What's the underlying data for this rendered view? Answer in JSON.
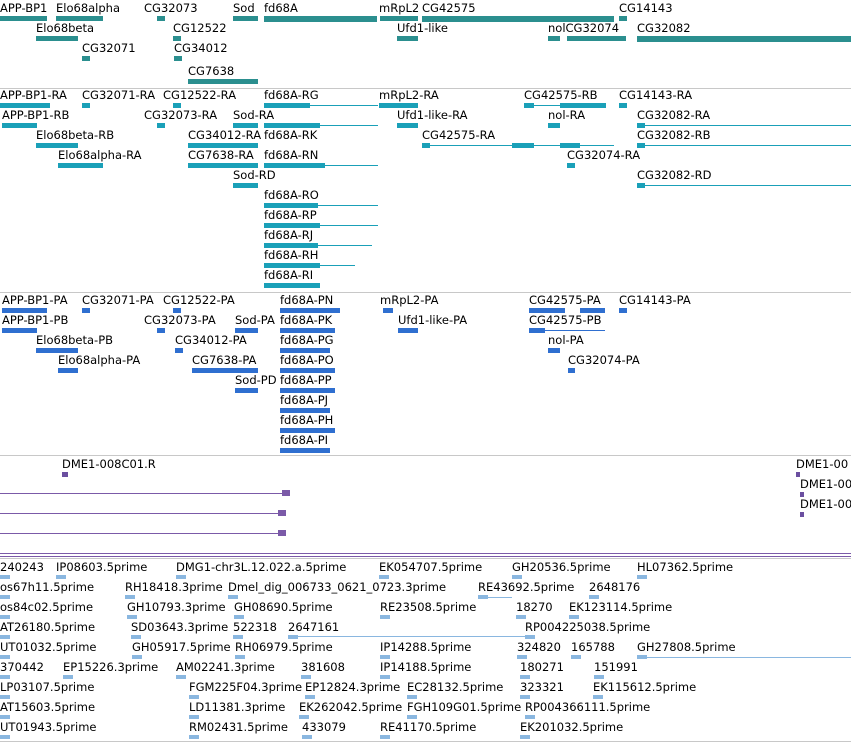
{
  "colors": {
    "gene": "#2b8f8f",
    "transcript": "#1aa0b8",
    "protein": "#2f6fd0",
    "clone": "#6b4fa0",
    "est": "#8ab7e0",
    "separator": "#c8c8c8",
    "purple_line": "#7b5aa8"
  },
  "tracks": {
    "genes": {
      "labels": [
        "APP-BP1",
        "Elo68alpha",
        "CG32073",
        "Sod",
        "fd68A",
        "mRpL2",
        "CG42575",
        "CG14143",
        "Elo68beta",
        "CG12522",
        "Ufd1-like",
        "nolCG32074",
        "CG32082",
        "CG32071",
        "CG34012",
        "CG7638"
      ]
    },
    "transcripts": {
      "labels": [
        "APP-BP1-RA",
        "CG32071-RA",
        "CG12522-RA",
        "fd68A-RG",
        "mRpL2-RA",
        "CG42575-RB",
        "CG14143-RA",
        "APP-BP1-RB",
        "CG32073-RA",
        "Sod-RA",
        "fd68A-RK",
        "Ufd1-like-RA",
        "nol-RA",
        "CG32082-RA",
        "Elo68beta-RB",
        "CG34012-RA",
        "CG42575-RA",
        "CG32082-RB",
        "Elo68alpha-RA",
        "CG7638-RA",
        "fd68A-RN",
        "CG32074-RA",
        "Sod-RD",
        "CG32082-RD",
        "fd68A-RO",
        "fd68A-RP",
        "fd68A-RJ",
        "fd68A-RH",
        "fd68A-RI"
      ]
    },
    "proteins": {
      "labels": [
        "APP-BP1-PA",
        "CG32071-PA",
        "CG12522-PA",
        "fd68A-PN",
        "mRpL2-PA",
        "CG42575-PA",
        "CG14143-PA",
        "APP-BP1-PB",
        "CG32073-PA",
        "Sod-PA",
        "fd68A-PK",
        "Ufd1-like-PA",
        "CG42575-PB",
        "Elo68beta-PB",
        "CG34012-PA",
        "fd68A-PG",
        "nol-PA",
        "Elo68alpha-PA",
        "CG7638-PA",
        "fd68A-PO",
        "CG32074-PA",
        "Sod-PD",
        "fd68A-PP",
        "fd68A-PJ",
        "fd68A-PH",
        "fd68A-PI"
      ]
    },
    "clones": {
      "labels": [
        "DME1-008C01.R",
        "DME1-00",
        "DME1-00",
        "DME1-00"
      ]
    },
    "ests": {
      "labels": [
        "240243",
        "IP08603.5prime",
        "DMG1-chr3L.12.022.a.5prime",
        "EK054707.5prime",
        "GH20536.5prime",
        "HL07362.5prime",
        "os67h11.5prime",
        "RH18418.3prime",
        "Dmel_dig_006733_0621_0723.3prime",
        "RE43692.5prime",
        "2648176",
        "os84c02.5prime",
        "GH10793.3prime",
        "GH08690.5prime",
        "RE23508.5prime",
        "18270",
        "EK123114.5prime",
        "AT26180.5prime",
        "SD03643.3prime",
        "522318",
        "2647161",
        "RP004225038.5prime",
        "UT01032.5prime",
        "GH05917.5prime",
        "RH06979.5prime",
        "IP14288.5prime",
        "324820",
        "165788",
        "GH27808.5prime",
        "370442",
        "EP15226.3prime",
        "AM02241.3prime",
        "381608",
        "IP14188.5prime",
        "180271",
        "151991",
        "LP03107.5prime",
        "FGM225F04.3prime",
        "EP12824.3prime",
        "EC28132.5prime",
        "323321",
        "EK115612.5prime",
        "AT15603.5prime",
        "LD11381.3prime",
        "EK262042.5prime",
        "FGH109G01.5prime",
        "RP004366111.5prime",
        "UT01943.5prime",
        "RM02431.5prime",
        "433079",
        "RE41170.5prime",
        "EK201032.5prime"
      ]
    }
  }
}
